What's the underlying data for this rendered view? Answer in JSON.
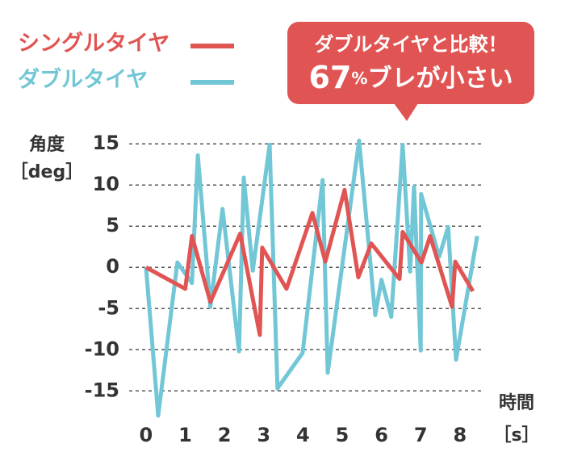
{
  "chart_data": {
    "type": "line",
    "legend": {
      "position": "top-left"
    },
    "annotation": {
      "line1": "ダブルタイヤと比較！",
      "line2": [
        "67",
        "%",
        "ブレが小さい"
      ],
      "color": "#e05553"
    },
    "y_label": "角度",
    "y_unit": "［deg］",
    "x_label": "時間",
    "x_unit": "［s］",
    "xlim": [
      -0.43,
      8.62
    ],
    "xticks": [
      0,
      1,
      2,
      3,
      4,
      5,
      6,
      7,
      8
    ],
    "ylim": [
      -18.5,
      16
    ],
    "yticks": [
      15,
      10,
      5,
      0,
      -5,
      -10,
      -15
    ],
    "grid": true,
    "series": [
      {
        "name": "シングルタイヤ",
        "color": "#e05553",
        "x": [
          0,
          1.0,
          1.17,
          1.64,
          2.4,
          2.9,
          2.96,
          3.58,
          4.24,
          4.57,
          5.06,
          5.41,
          5.74,
          6.46,
          6.54,
          7.02,
          7.24,
          7.8,
          7.88,
          8.33
        ],
        "values": [
          0,
          -2.6,
          3.8,
          -4.2,
          4.1,
          -8.2,
          2.4,
          -2.6,
          6.6,
          0.7,
          9.4,
          -1.2,
          2.9,
          -1.4,
          4.3,
          0.6,
          3.8,
          -4.8,
          0.7,
          -2.9
        ]
      },
      {
        "name": "ダブルタイヤ",
        "color": "#72c7d6",
        "x": [
          0,
          0.31,
          0.8,
          1.17,
          1.32,
          1.64,
          1.95,
          2.37,
          2.49,
          2.72,
          3.15,
          3.35,
          3.99,
          4.5,
          4.63,
          5.43,
          5.84,
          6.0,
          6.25,
          6.54,
          6.73,
          6.83,
          7.0,
          7.01,
          7.47,
          7.7,
          7.9,
          8.44
        ],
        "values": [
          0,
          -18,
          0.6,
          -1.9,
          13.6,
          -4.8,
          7.1,
          -10.2,
          10.9,
          -0.4,
          14.9,
          -14.7,
          -10.4,
          10.6,
          -12.8,
          15.4,
          -5.8,
          -1.5,
          -6.0,
          14.9,
          -0.5,
          9.8,
          -10.1,
          8.9,
          1.3,
          4.9,
          -11.2,
          3.8
        ]
      }
    ]
  }
}
